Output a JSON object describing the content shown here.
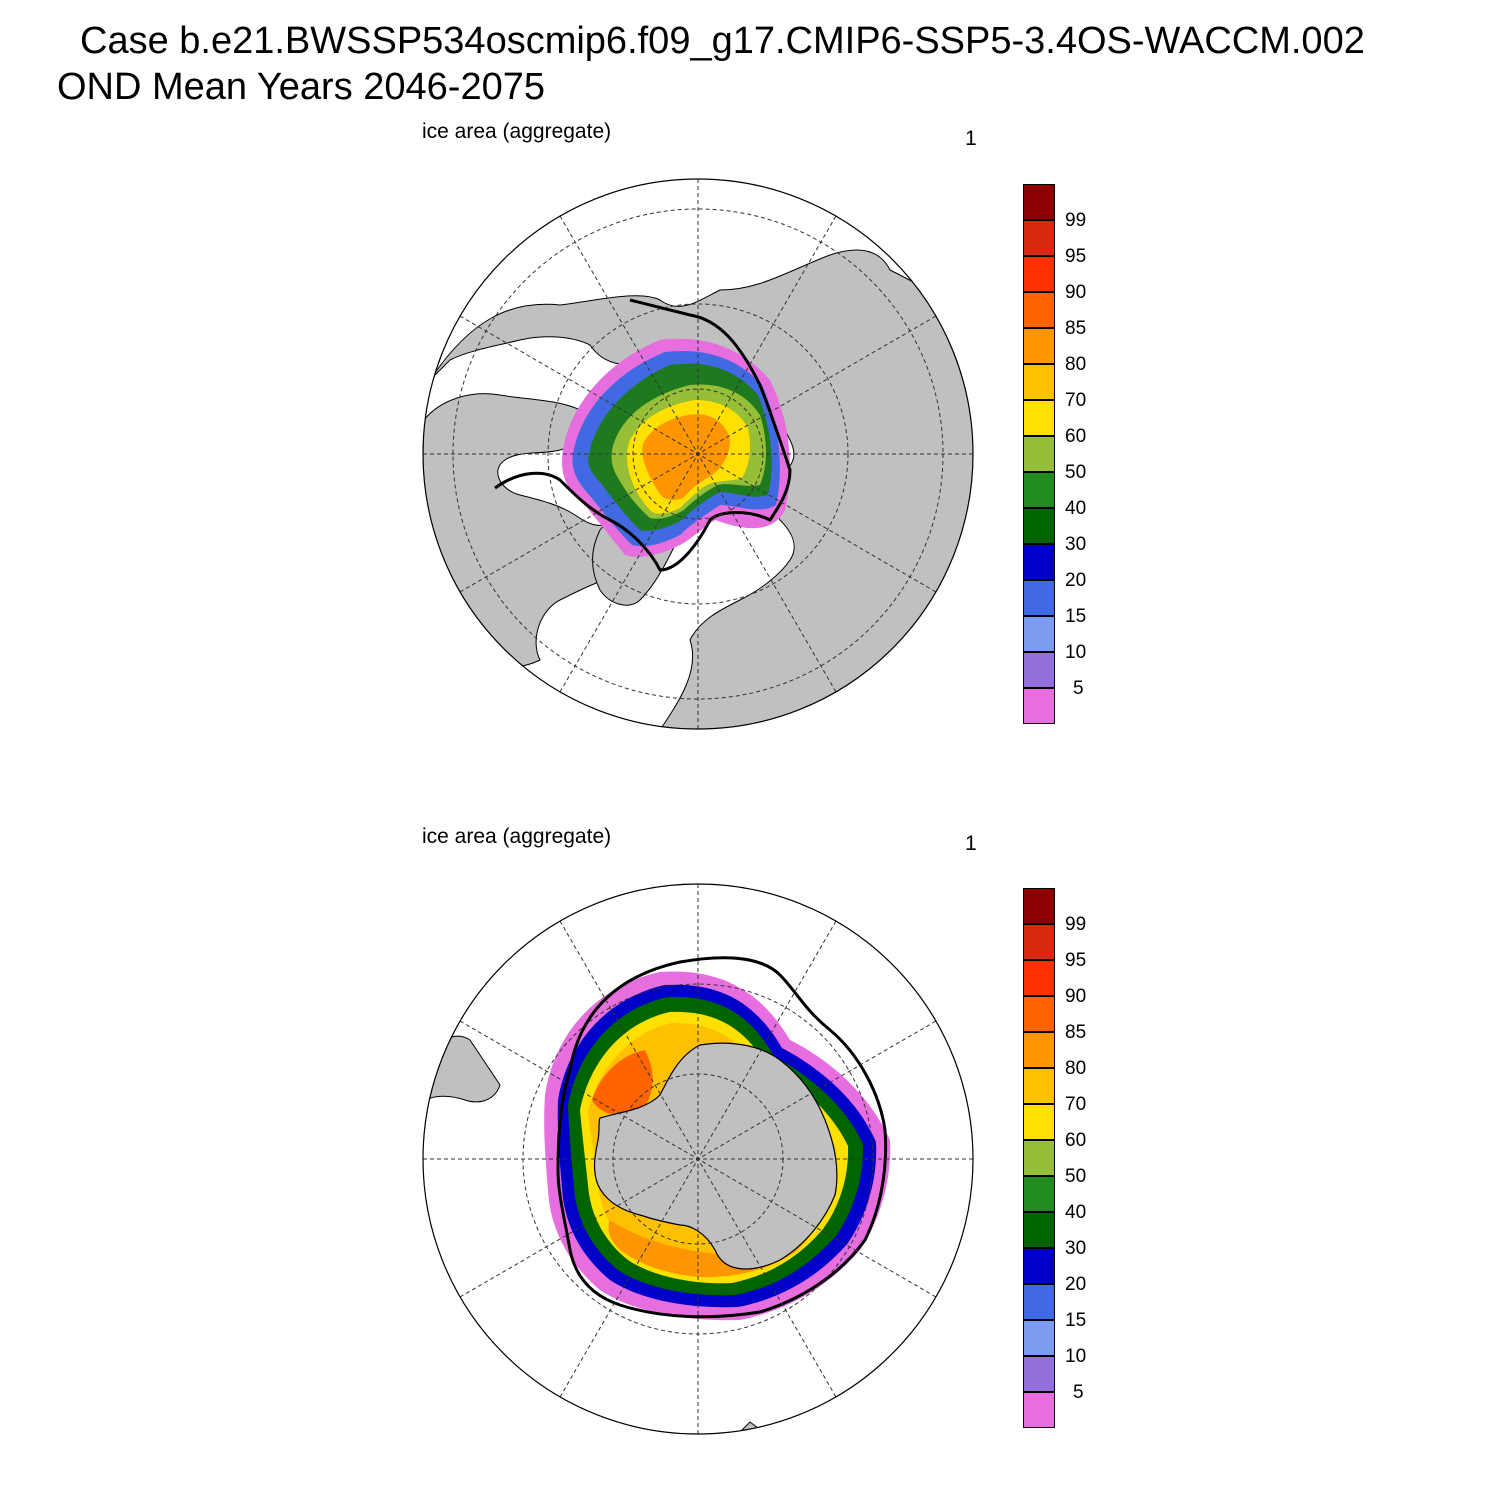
{
  "header": {
    "line1": "Case b.e21.BWSSP534oscmip6.f09_g17.CMIP6-SSP5-3.4OS-WACCM.002",
    "line2": "OND Mean   Years 2046-2075"
  },
  "panels": [
    {
      "id": "north",
      "label": "ice area  (aggregate)",
      "number": "1",
      "hemisphere": "north"
    },
    {
      "id": "south",
      "label": "ice area  (aggregate)",
      "number": "1",
      "hemisphere": "south"
    }
  ],
  "colorbar": {
    "levels": [
      "5",
      "10",
      "15",
      "20",
      "30",
      "40",
      "50",
      "60",
      "70",
      "80",
      "85",
      "90",
      "95",
      "99"
    ],
    "colors": [
      "#e66ede",
      "#9370db",
      "#7b9cf0",
      "#4169e1",
      "#0000c8",
      "#006400",
      "#228b22",
      "#96be36",
      "#ffe000",
      "#ffc000",
      "#ff9600",
      "#ff6400",
      "#ff3000",
      "#d82810",
      "#8b0000"
    ]
  },
  "palette": {
    "land": "#c0c0c0",
    "ocean": "#ffffff",
    "grid": "#333333",
    "coast": "#000000"
  }
}
